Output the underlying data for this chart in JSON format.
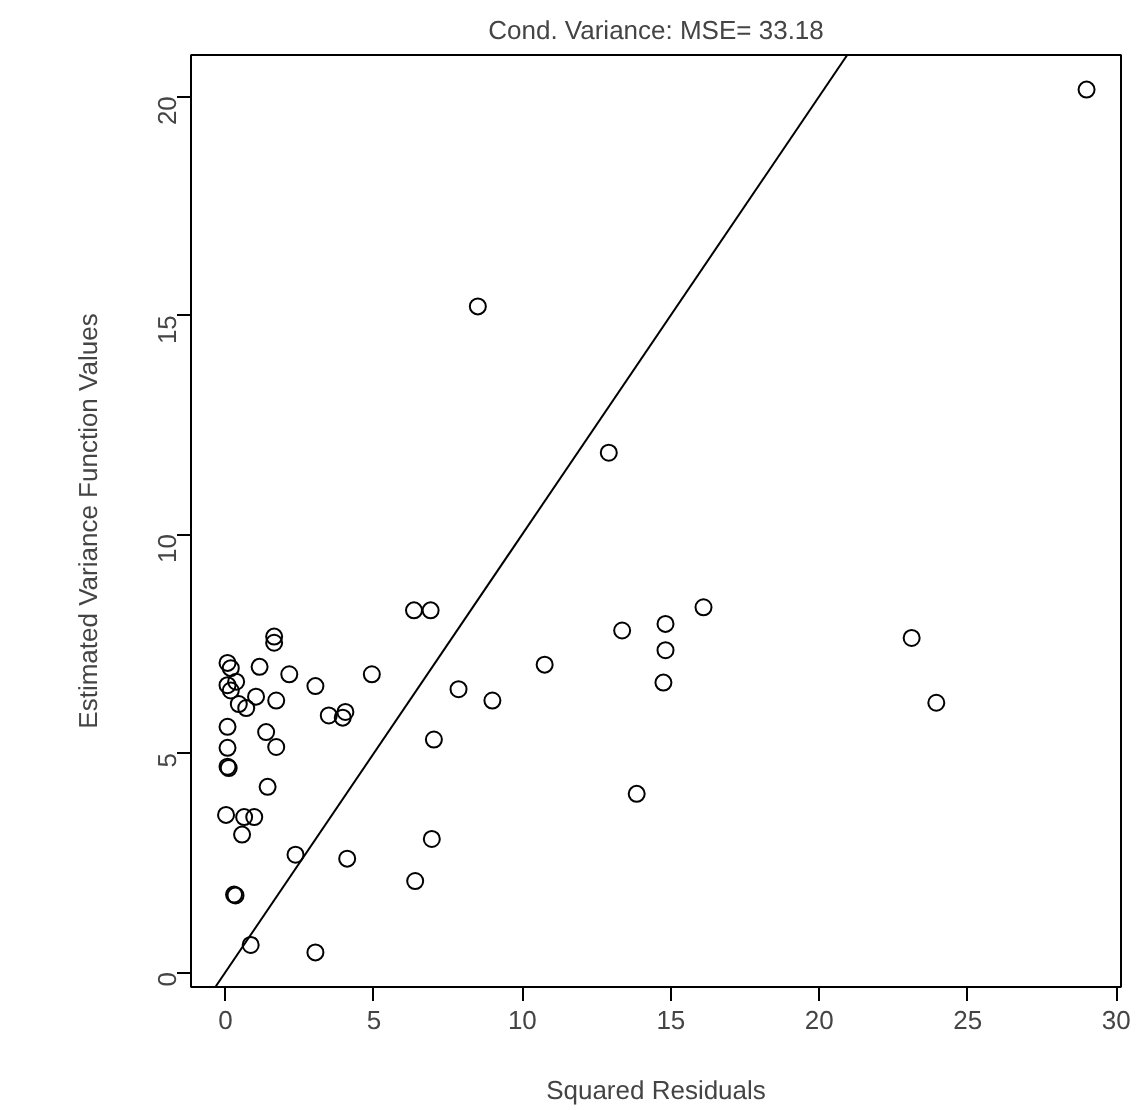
{
  "chart_data": {
    "type": "scatter",
    "title": "Cond. Variance: MSE= 33.18",
    "xlabel": "Squared Residuals",
    "ylabel": "Estimated Variance Function Values",
    "xlim": [
      -1.16,
      30.16
    ],
    "ylim": [
      -0.34,
      20.94
    ],
    "xticks": [
      0,
      5,
      10,
      15,
      20,
      25,
      30
    ],
    "yticks": [
      0,
      5,
      10,
      15,
      20
    ],
    "series": [
      {
        "marker": "circle",
        "color": "#000000",
        "x": [
          0.07,
          1.37,
          1.71,
          0.07,
          0.07,
          0.11,
          1.42,
          0.02,
          0.63,
          0.97,
          0.56,
          2.36,
          4.1,
          6.95,
          7.02,
          6.39,
          0.29,
          0.34,
          0.85,
          3.03,
          0.07,
          0.18,
          0.36,
          0.45,
          0.7,
          1.03,
          1.71,
          2.15,
          3.03,
          3.48,
          3.95,
          4.04,
          4.93,
          7.85,
          8.99,
          0.07,
          0.18,
          1.15,
          1.64,
          1.64,
          6.35,
          6.91,
          10.75,
          12.91,
          13.36,
          14.82,
          14.82,
          14.75,
          16.1,
          13.85,
          23.11,
          23.94,
          29.0,
          8.5
        ],
        "values": [
          5.6,
          5.48,
          5.14,
          5.12,
          4.69,
          4.66,
          4.23,
          3.59,
          3.54,
          3.54,
          3.14,
          2.68,
          2.59,
          3.04,
          5.31,
          2.08,
          1.77,
          1.75,
          0.62,
          0.45,
          6.55,
          6.43,
          6.63,
          6.12,
          6.03,
          6.29,
          6.2,
          6.8,
          6.53,
          5.86,
          5.81,
          5.94,
          6.8,
          6.46,
          6.2,
          7.06,
          6.94,
          6.97,
          7.66,
          7.52,
          8.26,
          8.26,
          7.02,
          11.86,
          7.8,
          7.95,
          7.35,
          6.61,
          8.33,
          4.07,
          7.63,
          6.15,
          20.15,
          15.2
        ]
      },
      {
        "type": "line",
        "color": "#000000",
        "x": [
          -0.34,
          20.94
        ],
        "values": [
          -0.34,
          20.94
        ]
      }
    ]
  }
}
